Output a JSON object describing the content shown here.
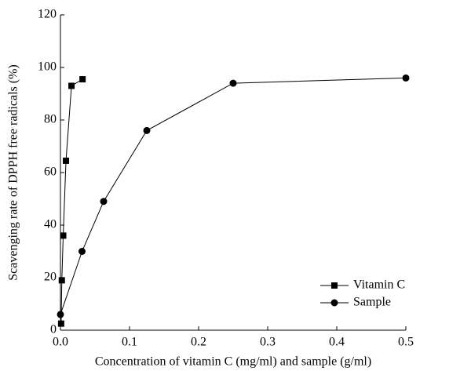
{
  "chart_data": {
    "type": "line",
    "x_label": "Concentration of vitamin C (mg/ml) and sample (g/ml)",
    "y_label": "Scavenging rate of DPPH free radicals (%)",
    "series": [
      {
        "name": "Vitamin C",
        "color": "#000000",
        "marker": "square",
        "x": [
          0.001,
          0.002,
          0.004,
          0.008,
          0.016,
          0.032
        ],
        "values": [
          2.5,
          19,
          36,
          64.5,
          93,
          95.5
        ]
      },
      {
        "name": "Sample",
        "color": "#000000",
        "marker": "circle",
        "x": [
          0,
          0.03125,
          0.0625,
          0.125,
          0.25,
          0.5
        ],
        "values": [
          6,
          30,
          49,
          76,
          94,
          96
        ]
      }
    ],
    "xlim": [
      0,
      0.5
    ],
    "xticks": [
      {
        "value": 0,
        "label": "0.0"
      },
      {
        "value": 0.1,
        "label": "0.1"
      },
      {
        "value": 0.2,
        "label": "0.2"
      },
      {
        "value": 0.3,
        "label": "0.3"
      },
      {
        "value": 0.4,
        "label": "0.4"
      },
      {
        "value": 0.5,
        "label": "0.5"
      }
    ],
    "ylim": [
      0,
      120
    ],
    "yticks": [
      0,
      20,
      40,
      60,
      80,
      100,
      120
    ],
    "legend": "lower right"
  }
}
